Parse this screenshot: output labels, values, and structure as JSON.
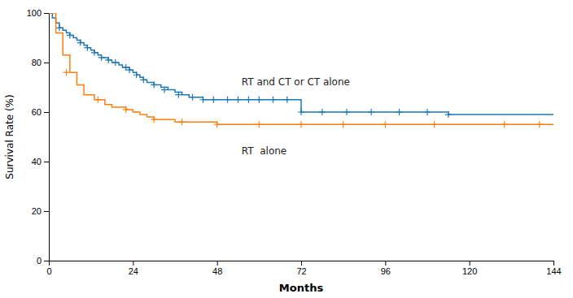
{
  "chart_data": {
    "type": "step",
    "xlabel": "Months",
    "ylabel": "Survival Rate (%)",
    "xlim": [
      0,
      144
    ],
    "ylim": [
      0,
      100
    ],
    "xticks": [
      0,
      24,
      48,
      72,
      96,
      120,
      144
    ],
    "yticks": [
      0,
      20,
      40,
      60,
      80,
      100
    ],
    "grid": false,
    "series": [
      {
        "marker": "plus",
        "x": [
          0,
          1,
          2,
          3,
          4,
          5,
          6,
          7,
          8,
          9,
          10,
          11,
          12,
          13,
          14,
          15,
          16,
          17,
          18,
          19,
          20,
          21,
          22,
          23,
          24,
          25,
          26,
          27,
          28,
          30,
          32,
          34,
          36,
          38,
          40,
          42,
          44,
          46,
          48,
          50,
          52,
          54,
          56,
          58,
          60,
          62,
          64,
          66,
          68,
          70,
          72,
          80,
          90,
          100,
          110,
          114,
          144
        ],
        "values": [
          100,
          98,
          96,
          94,
          93,
          92,
          91,
          90,
          89,
          88,
          87,
          86,
          85,
          84,
          83,
          82,
          82,
          81,
          80,
          80,
          79,
          78,
          78,
          77,
          76,
          75,
          74,
          73,
          72,
          71,
          70,
          69,
          68,
          67,
          66,
          66,
          65,
          65,
          65,
          65,
          65,
          65,
          65,
          65,
          65,
          65,
          65,
          65,
          65,
          65,
          60,
          60,
          60,
          60,
          60,
          59,
          59
        ],
        "censor_x": [
          3,
          6,
          9,
          11,
          13,
          15,
          17,
          19,
          22,
          23,
          25,
          27,
          30,
          33,
          37,
          41,
          44,
          47,
          51,
          54,
          57,
          60,
          64,
          68,
          72,
          78,
          85,
          92,
          100,
          108,
          114
        ],
        "censor_values": [
          94,
          91,
          88,
          86,
          84,
          82,
          81,
          80,
          78,
          77,
          75,
          73,
          71,
          69,
          67,
          66,
          65,
          65,
          65,
          65,
          65,
          65,
          65,
          65,
          60,
          60,
          60,
          60,
          60,
          60,
          59
        ]
      },
      {
        "marker": "plus",
        "x": [
          0,
          2,
          4,
          6,
          8,
          10,
          13,
          16,
          18,
          20,
          22,
          24,
          26,
          28,
          30,
          36,
          48,
          60,
          72,
          80,
          90,
          100,
          110,
          120,
          130,
          140,
          144
        ],
        "values": [
          100,
          92,
          83,
          76,
          71,
          67,
          65,
          63,
          62,
          62,
          61,
          60,
          59,
          58,
          57,
          56,
          55,
          55,
          55,
          55,
          55,
          55,
          55,
          55,
          55,
          55,
          55
        ],
        "censor_x": [
          5,
          14,
          22,
          30,
          38,
          48,
          60,
          72,
          84,
          96,
          110,
          130,
          140
        ],
        "censor_values": [
          76,
          65,
          61,
          57,
          56,
          55,
          55,
          55,
          55,
          55,
          55,
          55,
          55
        ]
      }
    ],
    "annotations": [
      {
        "text": "RT and CT or CT alone",
        "x": 55,
        "y": 72
      },
      {
        "text": "RT  alone",
        "x": 55,
        "y": 44
      }
    ]
  }
}
